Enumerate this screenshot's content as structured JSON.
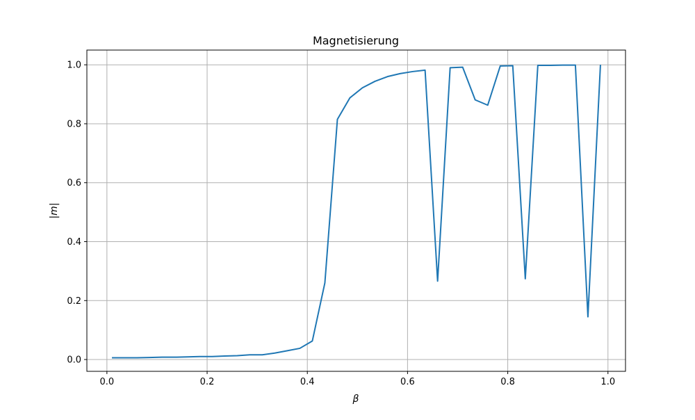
{
  "chart_data": {
    "type": "line",
    "title": "Magnetisierung",
    "xlabel": "β",
    "ylabel": "|m|",
    "xlim": [
      -0.04,
      1.035
    ],
    "ylim": [
      -0.04,
      1.05
    ],
    "xticks": [
      0.0,
      0.2,
      0.4,
      0.6,
      0.8,
      1.0
    ],
    "xtick_labels": [
      "0.0",
      "0.2",
      "0.4",
      "0.6",
      "0.8",
      "1.0"
    ],
    "yticks": [
      0.0,
      0.2,
      0.4,
      0.6,
      0.8,
      1.0
    ],
    "ytick_labels": [
      "0.0",
      "0.2",
      "0.4",
      "0.6",
      "0.8",
      "1.0"
    ],
    "grid": true,
    "color": "#1f77b4",
    "series": [
      {
        "x": [
          0.01,
          0.035,
          0.06,
          0.085,
          0.11,
          0.135,
          0.16,
          0.185,
          0.21,
          0.235,
          0.26,
          0.285,
          0.31,
          0.335,
          0.36,
          0.385,
          0.41,
          0.435,
          0.46,
          0.485,
          0.51,
          0.535,
          0.56,
          0.585,
          0.61,
          0.635,
          0.66,
          0.685,
          0.71,
          0.735,
          0.76,
          0.785,
          0.81,
          0.835,
          0.86,
          0.885,
          0.91,
          0.935,
          0.96,
          0.985
        ],
        "values": [
          0.006,
          0.006,
          0.006,
          0.007,
          0.008,
          0.008,
          0.009,
          0.01,
          0.01,
          0.012,
          0.013,
          0.016,
          0.016,
          0.022,
          0.03,
          0.038,
          0.063,
          0.26,
          0.815,
          0.888,
          0.922,
          0.944,
          0.96,
          0.97,
          0.977,
          0.982,
          0.266,
          0.99,
          0.992,
          0.881,
          0.863,
          0.996,
          0.997,
          0.274,
          0.998,
          0.998,
          0.999,
          0.999,
          0.145,
          1.0
        ]
      }
    ]
  }
}
